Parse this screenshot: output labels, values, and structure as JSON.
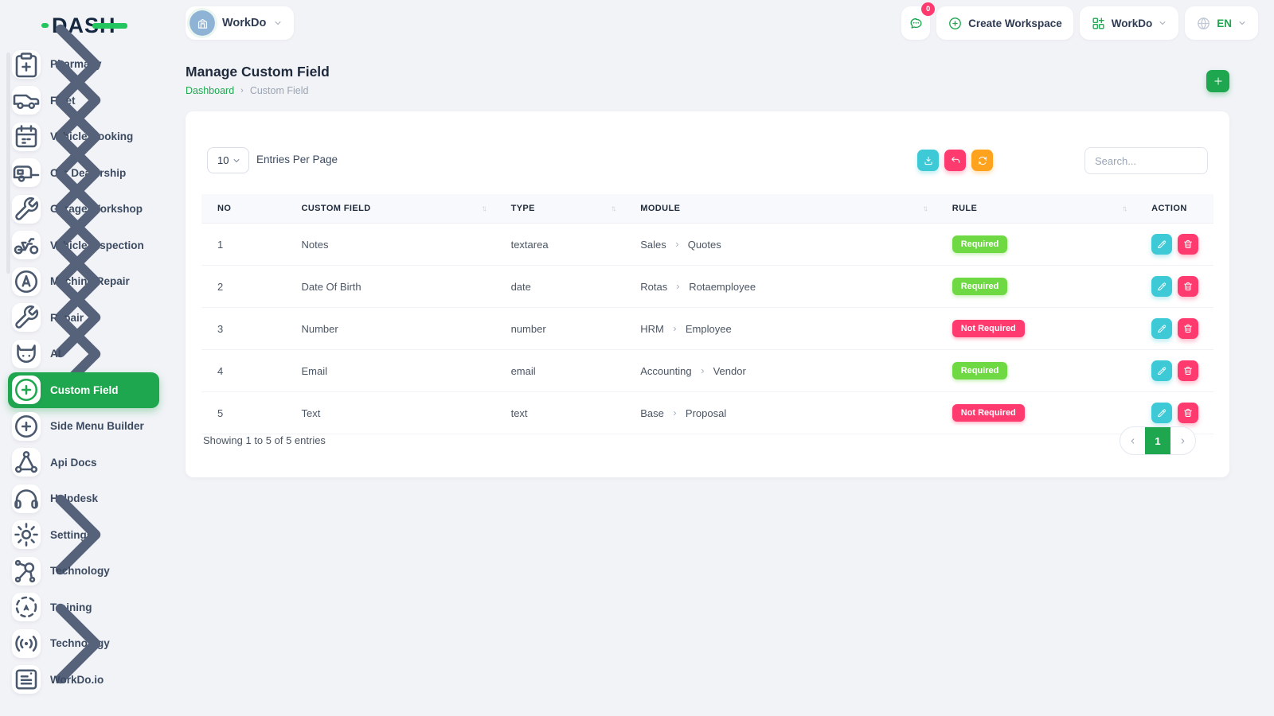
{
  "brand": {
    "logo_text": "DASH"
  },
  "topbar": {
    "workspace": {
      "label": "WorkDo",
      "avatar_icon": "building-icon"
    },
    "messages_badge": "0",
    "create_workspace_label": "Create Workspace",
    "workdo_menu_label": "WorkDo",
    "language": "EN"
  },
  "page": {
    "title": "Manage Custom Field",
    "breadcrumb": [
      "Dashboard",
      "Custom Field"
    ]
  },
  "sidebar": {
    "items": [
      {
        "label": "Pharmacy",
        "icon": "clipboard",
        "chevron": true,
        "active": false
      },
      {
        "label": "Fleet",
        "icon": "van",
        "chevron": true,
        "active": false
      },
      {
        "label": "Vehicle Booking",
        "icon": "calendar",
        "chevron": true,
        "active": false
      },
      {
        "label": "Car Dealership",
        "icon": "caravan",
        "chevron": true,
        "active": false
      },
      {
        "label": "Garage/Workshop",
        "icon": "wrench",
        "chevron": true,
        "active": false
      },
      {
        "label": "Vehicle Inspection",
        "icon": "motorcycle",
        "chevron": true,
        "active": false
      },
      {
        "label": "Machine Repair",
        "icon": "machine",
        "chevron": true,
        "active": false
      },
      {
        "label": "Repair",
        "icon": "wrench",
        "chevron": true,
        "active": false
      },
      {
        "label": "AI",
        "icon": "ai",
        "chevron": true,
        "active": false
      },
      {
        "label": "Custom Field",
        "icon": "plus-circle",
        "chevron": false,
        "active": true
      },
      {
        "label": "Side Menu Builder",
        "icon": "plus-circle",
        "chevron": false,
        "active": false
      },
      {
        "label": "Api Docs",
        "icon": "share",
        "chevron": false,
        "active": false
      },
      {
        "label": "Helpdesk",
        "icon": "headphones",
        "chevron": false,
        "active": false
      },
      {
        "label": "Settings",
        "icon": "gear",
        "chevron": true,
        "active": false
      },
      {
        "label": "Technology",
        "icon": "hub",
        "chevron": false,
        "active": false
      },
      {
        "label": "Training",
        "icon": "dashed-circle",
        "chevron": false,
        "active": false
      },
      {
        "label": "Technology",
        "icon": "broadcast",
        "chevron": true,
        "active": false
      },
      {
        "label": "WorkDo.io",
        "icon": "badge-card",
        "chevron": false,
        "active": false
      }
    ]
  },
  "toolbar": {
    "entries_value": "10",
    "entries_label": "Entries Per Page",
    "search_placeholder": "Search...",
    "buttons": [
      {
        "name": "export",
        "icon": "download",
        "color": "cyan"
      },
      {
        "name": "undo",
        "icon": "undo",
        "color": "pink"
      },
      {
        "name": "refresh",
        "icon": "refresh",
        "color": "orange"
      }
    ]
  },
  "table": {
    "headers": [
      {
        "label": "NO",
        "sortable": false
      },
      {
        "label": "CUSTOM FIELD",
        "sortable": true
      },
      {
        "label": "TYPE",
        "sortable": true
      },
      {
        "label": "MODULE",
        "sortable": true
      },
      {
        "label": "RULE",
        "sortable": true
      },
      {
        "label": "ACTION",
        "sortable": false
      }
    ],
    "rows": [
      {
        "no": "1",
        "field": "Notes",
        "type": "textarea",
        "module": [
          "Sales",
          "Quotes"
        ],
        "rule": "Required",
        "rule_color": "green"
      },
      {
        "no": "2",
        "field": "Date Of Birth",
        "type": "date",
        "module": [
          "Rotas",
          "Rotaemployee"
        ],
        "rule": "Required",
        "rule_color": "green"
      },
      {
        "no": "3",
        "field": "Number",
        "type": "number",
        "module": [
          "HRM",
          "Employee"
        ],
        "rule": "Not Required",
        "rule_color": "pink"
      },
      {
        "no": "4",
        "field": "Email",
        "type": "email",
        "module": [
          "Accounting",
          "Vendor"
        ],
        "rule": "Required",
        "rule_color": "green"
      },
      {
        "no": "5",
        "field": "Text",
        "type": "text",
        "module": [
          "Base",
          "Proposal"
        ],
        "rule": "Not Required",
        "rule_color": "pink"
      }
    ]
  },
  "footer": {
    "showing_text": "Showing 1 to 5 of 5 entries",
    "pages": [
      "1"
    ],
    "active_page": "1"
  },
  "colors": {
    "primary_green": "#1fa750",
    "lime_badge": "#6fd943",
    "pink": "#ff3a6e",
    "cyan": "#3ec9d6",
    "orange": "#ffa21d",
    "logo_green": "#22c55e",
    "navy_text": "#15273f",
    "page_bg": "#f2f3f7"
  }
}
